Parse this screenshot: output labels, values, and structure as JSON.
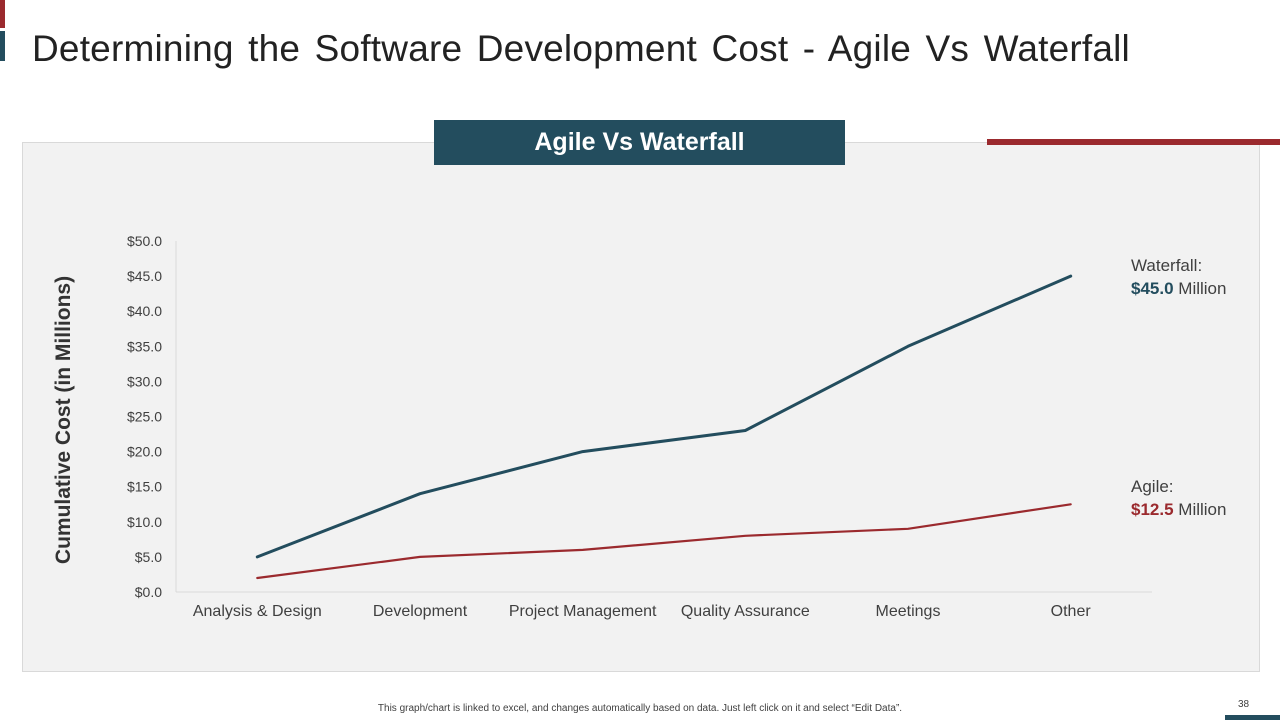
{
  "slide": {
    "title": "Determining the Software Development Cost - Agile Vs Waterfall",
    "footnote": "This graph/chart is linked to excel,  and changes automatically based on data. Just left click on it and select “Edit Data”.",
    "page_number": "38"
  },
  "chart_data": {
    "type": "line",
    "title": "Agile Vs Waterfall",
    "xlabel": "",
    "ylabel": "Cumulative Cost (in Millions)",
    "categories": [
      "Analysis & Design",
      "Development",
      "Project Management",
      "Quality Assurance",
      "Meetings",
      "Other"
    ],
    "ylim": [
      0,
      50
    ],
    "yticks": [
      "$0.0",
      "$5.0",
      "$10.0",
      "$15.0",
      "$20.0",
      "$25.0",
      "$30.0",
      "$35.0",
      "$40.0",
      "$45.0",
      "$50.0"
    ],
    "grid": false,
    "series": [
      {
        "name": "Waterfall",
        "values": [
          5,
          14,
          20,
          23,
          35,
          45
        ],
        "color": "#234d5e"
      },
      {
        "name": "Agile",
        "values": [
          2,
          5,
          6,
          8,
          9,
          12.5
        ],
        "color": "#9b2a2e"
      }
    ],
    "annotations": {
      "waterfall": {
        "label": "Waterfall:",
        "value": "$45.0",
        "unit": "Million",
        "color": "#234d5e"
      },
      "agile": {
        "label": "Agile:",
        "value": "$12.5",
        "unit": "Million",
        "color": "#9b2a2e"
      }
    }
  }
}
